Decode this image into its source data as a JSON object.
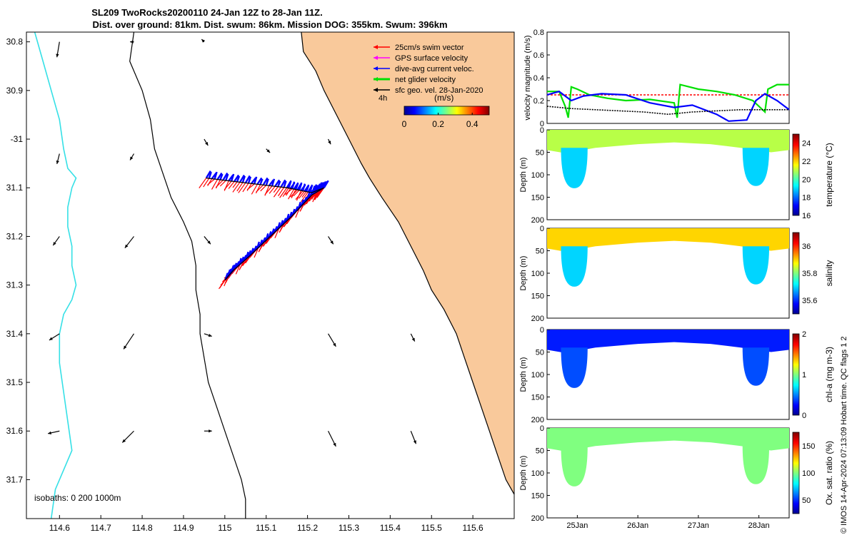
{
  "title": {
    "line1": "SL209 TwoRocks20200110 24-Jan 12Z to 28-Jan 11Z.",
    "line2": "Dist. over ground: 81km. Dist. swum: 86km. Mission DOG: 355km. Swum: 396km"
  },
  "colors": {
    "land": "#f9c99b",
    "isobath_shallow": "#000000",
    "isobath_deep": "#35e0e6",
    "swim_vector": "#ff0000",
    "gps_velocity": "#ff00ff",
    "dive_avg_current": "#0000ff",
    "net_glider": "#00e000",
    "sfc_geo": "#000000"
  },
  "chart_data": [
    {
      "type": "map",
      "name": "glider-track-map",
      "x": {
        "min": 114.52,
        "max": 115.7,
        "ticks": [
          114.6,
          114.7,
          114.8,
          114.9,
          115,
          115.1,
          115.2,
          115.3,
          115.4,
          115.5,
          115.6
        ],
        "tick_labels": [
          "114.6",
          "114.7",
          "114.8",
          "114.9",
          "115",
          "115.1",
          "115.2",
          "115.3",
          "115.4",
          "115.5",
          "115.6"
        ]
      },
      "y": {
        "min": -31.78,
        "max": -30.78,
        "ticks": [
          -30.8,
          -30.9,
          -31.0,
          -31.1,
          -31.2,
          -31.3,
          -31.4,
          -31.5,
          -31.6,
          -31.7
        ],
        "tick_labels": [
          "30.8",
          "30.9",
          "-31",
          "31.1",
          "31.2",
          "31.3",
          "31.4",
          "31.5",
          "31.6",
          "31.7"
        ]
      },
      "legend": {
        "placement": "top-right",
        "entries": [
          {
            "label": "25cm/s swim vector",
            "color": "#ff0000"
          },
          {
            "label": "GPS surface velocity",
            "color": "#ff00ff"
          },
          {
            "label": "dive-avg current veloc.",
            "color": "#0000ff"
          },
          {
            "label": "net glider velocity",
            "color": "#00e000"
          },
          {
            "label": "sfc geo. vel. 28-Jan-2020",
            "color": "#000000"
          }
        ]
      },
      "colorbar": {
        "label": "(m/s)",
        "ticks": [
          0,
          0.2,
          0.4
        ],
        "tick_labels": [
          "0",
          "0.2",
          "0.4"
        ],
        "range": [
          0,
          0.5
        ]
      },
      "time_marker": "4h",
      "isobath_label": "isobaths: 0   200  1000m",
      "coastline": [
        [
          115.185,
          -30.78
        ],
        [
          115.19,
          -30.82
        ],
        [
          115.22,
          -30.86
        ],
        [
          115.24,
          -30.9
        ],
        [
          115.27,
          -30.95
        ],
        [
          115.3,
          -31.0
        ],
        [
          115.33,
          -31.05
        ],
        [
          115.35,
          -31.08
        ],
        [
          115.38,
          -31.12
        ],
        [
          115.42,
          -31.17
        ],
        [
          115.45,
          -31.22
        ],
        [
          115.48,
          -31.27
        ],
        [
          115.5,
          -31.31
        ],
        [
          115.53,
          -31.35
        ],
        [
          115.56,
          -31.4
        ],
        [
          115.58,
          -31.45
        ],
        [
          115.6,
          -31.5
        ],
        [
          115.62,
          -31.55
        ],
        [
          115.64,
          -31.6
        ],
        [
          115.66,
          -31.65
        ],
        [
          115.68,
          -31.7
        ],
        [
          115.7,
          -31.73
        ]
      ],
      "isobath_200": [
        [
          114.78,
          -30.78
        ],
        [
          114.77,
          -30.84
        ],
        [
          114.8,
          -30.9
        ],
        [
          114.82,
          -30.96
        ],
        [
          114.83,
          -31.02
        ],
        [
          114.85,
          -31.07
        ],
        [
          114.87,
          -31.12
        ],
        [
          114.9,
          -31.17
        ],
        [
          114.92,
          -31.21
        ],
        [
          114.93,
          -31.26
        ],
        [
          114.93,
          -31.31
        ],
        [
          114.94,
          -31.36
        ],
        [
          114.94,
          -31.4
        ],
        [
          114.95,
          -31.45
        ],
        [
          114.96,
          -31.5
        ],
        [
          114.98,
          -31.55
        ],
        [
          115.0,
          -31.6
        ],
        [
          115.02,
          -31.65
        ],
        [
          115.04,
          -31.7
        ],
        [
          115.05,
          -31.74
        ],
        [
          115.05,
          -31.78
        ]
      ],
      "isobath_1000": [
        [
          114.54,
          -30.78
        ],
        [
          114.56,
          -30.84
        ],
        [
          114.58,
          -30.9
        ],
        [
          114.6,
          -30.96
        ],
        [
          114.61,
          -31.02
        ],
        [
          114.62,
          -31.06
        ],
        [
          114.64,
          -31.08
        ],
        [
          114.63,
          -31.1
        ],
        [
          114.62,
          -31.14
        ],
        [
          114.62,
          -31.18
        ],
        [
          114.63,
          -31.22
        ],
        [
          114.63,
          -31.26
        ],
        [
          114.64,
          -31.3
        ],
        [
          114.63,
          -31.33
        ],
        [
          114.61,
          -31.36
        ],
        [
          114.6,
          -31.4
        ],
        [
          114.6,
          -31.46
        ],
        [
          114.61,
          -31.52
        ],
        [
          114.62,
          -31.58
        ],
        [
          114.63,
          -31.64
        ],
        [
          114.61,
          -31.68
        ],
        [
          114.59,
          -31.72
        ],
        [
          114.58,
          -31.78
        ]
      ],
      "track": [
        [
          114.955,
          -31.08
        ],
        [
          115.05,
          -31.09
        ],
        [
          115.15,
          -31.1
        ],
        [
          115.21,
          -31.11
        ],
        [
          115.24,
          -31.1
        ],
        [
          115.21,
          -31.115
        ],
        [
          115.16,
          -31.16
        ],
        [
          115.11,
          -31.2
        ],
        [
          115.06,
          -31.24
        ],
        [
          115.02,
          -31.27
        ],
        [
          115.0,
          -31.29
        ]
      ],
      "geo_arrows": [
        {
          "lon": 114.6,
          "lat": -30.8,
          "u": -0.02,
          "v": -0.12
        },
        {
          "lon": 114.6,
          "lat": -31.03,
          "u": -0.02,
          "v": -0.08
        },
        {
          "lon": 114.6,
          "lat": -31.2,
          "u": -0.05,
          "v": -0.07
        },
        {
          "lon": 114.6,
          "lat": -31.4,
          "u": -0.08,
          "v": -0.05
        },
        {
          "lon": 114.6,
          "lat": -31.6,
          "u": -0.09,
          "v": -0.02
        },
        {
          "lon": 114.78,
          "lat": -30.8,
          "u": -0.03,
          "v": 0.0
        },
        {
          "lon": 114.78,
          "lat": -31.03,
          "u": -0.03,
          "v": -0.05
        },
        {
          "lon": 114.78,
          "lat": -31.2,
          "u": -0.07,
          "v": -0.09
        },
        {
          "lon": 114.78,
          "lat": -31.4,
          "u": -0.08,
          "v": -0.12
        },
        {
          "lon": 114.78,
          "lat": -31.6,
          "u": -0.09,
          "v": -0.09
        },
        {
          "lon": 114.95,
          "lat": -30.8,
          "u": -0.02,
          "v": 0.02
        },
        {
          "lon": 114.95,
          "lat": -31.0,
          "u": 0.03,
          "v": -0.05
        },
        {
          "lon": 114.95,
          "lat": -31.2,
          "u": 0.05,
          "v": -0.06
        },
        {
          "lon": 114.95,
          "lat": -31.4,
          "u": 0.06,
          "v": -0.02
        },
        {
          "lon": 114.95,
          "lat": -31.6,
          "u": 0.06,
          "v": 0.0
        },
        {
          "lon": 115.1,
          "lat": -31.02,
          "u": 0.03,
          "v": -0.03
        },
        {
          "lon": 115.25,
          "lat": -31.0,
          "u": 0.02,
          "v": -0.04
        },
        {
          "lon": 115.25,
          "lat": -31.2,
          "u": 0.04,
          "v": -0.06
        },
        {
          "lon": 115.25,
          "lat": -31.4,
          "u": 0.06,
          "v": -0.1
        },
        {
          "lon": 115.25,
          "lat": -31.6,
          "u": 0.06,
          "v": -0.12
        },
        {
          "lon": 115.45,
          "lat": -31.4,
          "u": 0.03,
          "v": -0.06
        },
        {
          "lon": 115.45,
          "lat": -31.6,
          "u": 0.04,
          "v": -0.1
        }
      ]
    },
    {
      "type": "line",
      "name": "velocity-magnitude-timeseries",
      "ylabel": "velocity magnitude (m/s)",
      "ylim": [
        0,
        0.8
      ],
      "yticks": [
        0,
        0.2,
        0.4,
        0.6,
        0.8
      ],
      "xlim": [
        24.5,
        28.5
      ],
      "series": [
        {
          "color": "#ff0000",
          "style": "dashed",
          "values": [
            [
              24.5,
              0.25
            ],
            [
              28.5,
              0.25
            ]
          ]
        },
        {
          "color": "#00e000",
          "style": "solid",
          "values": [
            [
              24.5,
              0.28
            ],
            [
              24.7,
              0.28
            ],
            [
              24.8,
              0.15
            ],
            [
              24.85,
              0.05
            ],
            [
              24.9,
              0.32
            ],
            [
              25.0,
              0.3
            ],
            [
              25.2,
              0.25
            ],
            [
              25.5,
              0.22
            ],
            [
              25.8,
              0.2
            ],
            [
              26.2,
              0.21
            ],
            [
              26.6,
              0.18
            ],
            [
              26.65,
              0.05
            ],
            [
              26.7,
              0.34
            ],
            [
              27.0,
              0.3
            ],
            [
              27.3,
              0.28
            ],
            [
              27.6,
              0.25
            ],
            [
              27.9,
              0.2
            ],
            [
              28.1,
              0.1
            ],
            [
              28.15,
              0.3
            ],
            [
              28.3,
              0.34
            ],
            [
              28.5,
              0.34
            ]
          ]
        },
        {
          "color": "#0000ff",
          "style": "solid",
          "values": [
            [
              24.5,
              0.25
            ],
            [
              24.7,
              0.28
            ],
            [
              24.9,
              0.2
            ],
            [
              25.1,
              0.24
            ],
            [
              25.4,
              0.26
            ],
            [
              25.8,
              0.25
            ],
            [
              26.2,
              0.18
            ],
            [
              26.6,
              0.14
            ],
            [
              26.9,
              0.16
            ],
            [
              27.3,
              0.08
            ],
            [
              27.5,
              0.02
            ],
            [
              27.8,
              0.03
            ],
            [
              27.95,
              0.2
            ],
            [
              28.1,
              0.26
            ],
            [
              28.3,
              0.2
            ],
            [
              28.5,
              0.12
            ]
          ]
        },
        {
          "color": "#000000",
          "style": "dotted",
          "values": [
            [
              24.5,
              0.15
            ],
            [
              24.9,
              0.13
            ],
            [
              25.3,
              0.12
            ],
            [
              25.7,
              0.11
            ],
            [
              26.1,
              0.1
            ],
            [
              26.5,
              0.08
            ],
            [
              26.9,
              0.1
            ],
            [
              27.3,
              0.11
            ],
            [
              27.7,
              0.12
            ],
            [
              28.1,
              0.12
            ],
            [
              28.5,
              0.12
            ]
          ]
        }
      ]
    },
    {
      "type": "heatmap",
      "name": "temperature-section",
      "ylabel": "Depth (m)",
      "cbar_label": "temperature (°C)",
      "cbar_ticks": [
        "16",
        "18",
        "20",
        "22",
        "24"
      ],
      "cbar_range": [
        16,
        25
      ],
      "ylim": [
        0,
        200
      ],
      "yticks": [
        0,
        50,
        100,
        150,
        200
      ],
      "surface_value": 21,
      "deep_value": 19
    },
    {
      "type": "heatmap",
      "name": "salinity-section",
      "ylabel": "Depth (m)",
      "cbar_label": "salinity",
      "cbar_ticks": [
        "35.6",
        "35.8",
        "36"
      ],
      "cbar_range": [
        35.5,
        36.1
      ],
      "ylim": [
        0,
        200
      ],
      "yticks": [
        0,
        50,
        100,
        150,
        200
      ],
      "surface_value": 35.9,
      "deep_value": 35.7
    },
    {
      "type": "heatmap",
      "name": "chl-a-section",
      "ylabel": "Depth (m)",
      "cbar_label": "chl-a (mg m-3)",
      "cbar_ticks": [
        "0",
        "1",
        "2"
      ],
      "cbar_range": [
        0,
        2
      ],
      "ylim": [
        0,
        200
      ],
      "yticks": [
        0,
        50,
        100,
        150,
        200
      ],
      "surface_value": 0.3,
      "deep_value": 0.4
    },
    {
      "type": "heatmap",
      "name": "oxygen-section",
      "ylabel": "Depth (m)",
      "cbar_label": "Ox. sat. ratio (%)",
      "cbar_ticks": [
        "50",
        "100",
        "150"
      ],
      "cbar_range": [
        25,
        175
      ],
      "ylim": [
        0,
        200
      ],
      "yticks": [
        0,
        50,
        100,
        150,
        200
      ],
      "surface_value": 100,
      "deep_value": 100,
      "xticks": [
        25,
        26,
        27,
        28
      ],
      "xtick_labels": [
        "25Jan",
        "26Jan",
        "27Jan",
        "28Jan"
      ]
    }
  ],
  "footer_note": "© IMOS 14-Apr-2024 07:13:09 Hobart time. QC flags 1  2"
}
